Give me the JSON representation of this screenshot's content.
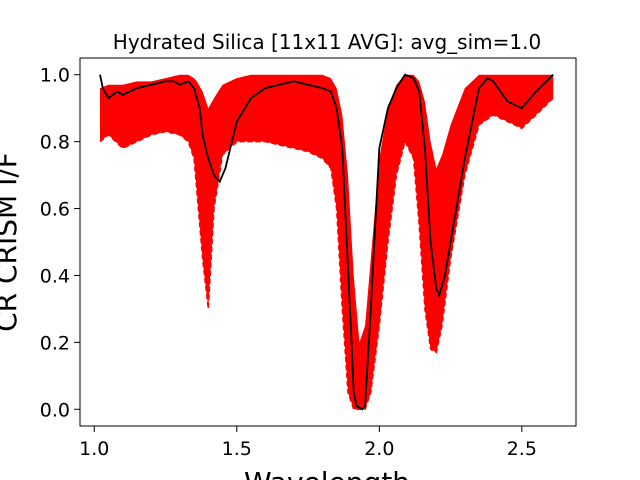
{
  "chart_data": {
    "type": "line",
    "title": "Hydrated Silica [11x11 AVG]: avg_sim=1.0",
    "xlabel": "Wavelength",
    "ylabel": "CR CRISM I/F",
    "xlim": [
      0.95,
      2.69
    ],
    "ylim": [
      -0.05,
      1.05
    ],
    "xticks": [
      1.0,
      1.5,
      2.0,
      2.5
    ],
    "xtick_labels": [
      "1.0",
      "1.5",
      "2.0",
      "2.5"
    ],
    "yticks": [
      0.0,
      0.2,
      0.4,
      0.6,
      0.8,
      1.0
    ],
    "ytick_labels": [
      "0.0",
      "0.2",
      "0.4",
      "0.6",
      "0.8",
      "1.0"
    ],
    "grid": false,
    "colors": {
      "envelope": "#ff0000",
      "mean": "#000000"
    },
    "series": [
      {
        "role": "envelope-upper",
        "x": [
          1.02,
          1.05,
          1.1,
          1.15,
          1.2,
          1.25,
          1.3,
          1.33,
          1.35,
          1.36,
          1.38,
          1.4,
          1.42,
          1.45,
          1.5,
          1.55,
          1.6,
          1.65,
          1.7,
          1.75,
          1.8,
          1.83,
          1.85,
          1.87,
          1.89,
          1.91,
          1.93,
          1.95,
          1.97,
          2.0,
          2.03,
          2.06,
          2.09,
          2.12,
          2.14,
          2.16,
          2.18,
          2.2,
          2.22,
          2.25,
          2.3,
          2.35,
          2.4,
          2.45,
          2.5,
          2.55,
          2.61
        ],
        "y": [
          0.96,
          0.97,
          0.97,
          0.98,
          0.98,
          0.99,
          1.0,
          1.0,
          0.99,
          0.98,
          0.95,
          0.9,
          0.93,
          0.97,
          0.99,
          1.0,
          1.0,
          1.0,
          1.0,
          1.0,
          1.0,
          0.99,
          0.96,
          0.88,
          0.7,
          0.4,
          0.2,
          0.25,
          0.45,
          0.75,
          0.9,
          0.97,
          1.0,
          1.0,
          0.98,
          0.92,
          0.8,
          0.72,
          0.76,
          0.85,
          0.96,
          1.0,
          1.0,
          1.0,
          1.0,
          1.0,
          1.0
        ]
      },
      {
        "role": "envelope-lower",
        "x": [
          1.02,
          1.05,
          1.1,
          1.15,
          1.2,
          1.25,
          1.3,
          1.33,
          1.35,
          1.36,
          1.38,
          1.4,
          1.42,
          1.45,
          1.5,
          1.55,
          1.6,
          1.65,
          1.7,
          1.75,
          1.8,
          1.83,
          1.85,
          1.87,
          1.89,
          1.91,
          1.93,
          1.95,
          1.97,
          2.0,
          2.03,
          2.06,
          2.09,
          2.12,
          2.14,
          2.16,
          2.18,
          2.2,
          2.22,
          2.25,
          2.3,
          2.35,
          2.4,
          2.45,
          2.5,
          2.55,
          2.61
        ],
        "y": [
          0.8,
          0.82,
          0.78,
          0.8,
          0.82,
          0.83,
          0.82,
          0.8,
          0.75,
          0.65,
          0.45,
          0.3,
          0.6,
          0.76,
          0.8,
          0.8,
          0.8,
          0.79,
          0.78,
          0.77,
          0.75,
          0.72,
          0.6,
          0.3,
          0.05,
          0.0,
          0.0,
          0.0,
          0.05,
          0.25,
          0.5,
          0.7,
          0.8,
          0.75,
          0.55,
          0.3,
          0.18,
          0.17,
          0.25,
          0.45,
          0.7,
          0.85,
          0.88,
          0.86,
          0.84,
          0.88,
          0.93
        ]
      },
      {
        "role": "mean",
        "x": [
          1.02,
          1.03,
          1.05,
          1.08,
          1.1,
          1.15,
          1.2,
          1.25,
          1.28,
          1.3,
          1.33,
          1.35,
          1.37,
          1.38,
          1.4,
          1.42,
          1.44,
          1.46,
          1.5,
          1.55,
          1.6,
          1.65,
          1.7,
          1.75,
          1.8,
          1.83,
          1.85,
          1.87,
          1.88,
          1.9,
          1.91,
          1.92,
          1.94,
          1.95,
          1.97,
          2.0,
          2.03,
          2.06,
          2.09,
          2.12,
          2.14,
          2.16,
          2.18,
          2.2,
          2.21,
          2.23,
          2.25,
          2.3,
          2.35,
          2.38,
          2.4,
          2.45,
          2.5,
          2.55,
          2.61
        ],
        "y": [
          1.0,
          0.96,
          0.93,
          0.95,
          0.94,
          0.96,
          0.97,
          0.98,
          0.98,
          0.97,
          0.98,
          0.96,
          0.9,
          0.82,
          0.75,
          0.7,
          0.68,
          0.72,
          0.86,
          0.93,
          0.96,
          0.97,
          0.98,
          0.97,
          0.96,
          0.95,
          0.9,
          0.78,
          0.6,
          0.25,
          0.05,
          0.01,
          0.0,
          0.01,
          0.3,
          0.78,
          0.9,
          0.96,
          1.0,
          0.99,
          0.95,
          0.78,
          0.5,
          0.36,
          0.34,
          0.4,
          0.5,
          0.75,
          0.96,
          0.99,
          0.98,
          0.92,
          0.9,
          0.95,
          1.0
        ]
      }
    ]
  }
}
